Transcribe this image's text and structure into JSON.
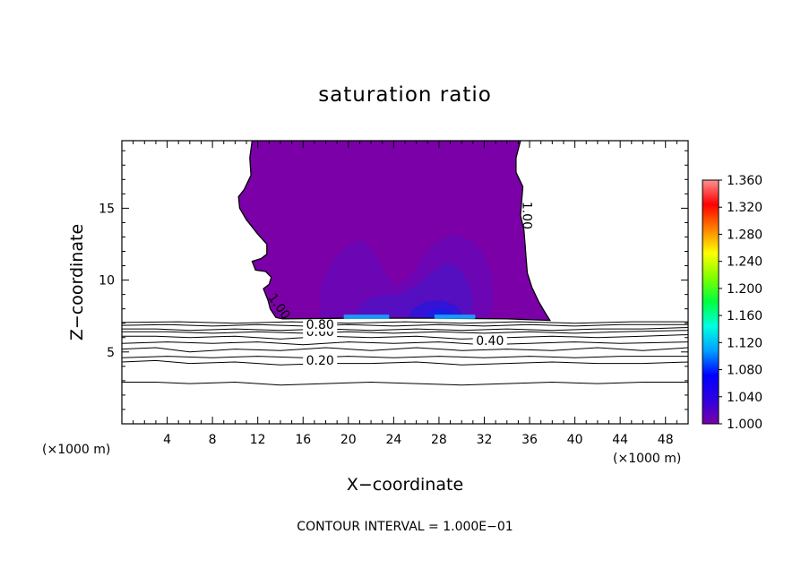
{
  "chart_data": {
    "type": "contour",
    "title": "saturation ratio",
    "xlabel": "X−coordinate",
    "ylabel": "Z−coordinate",
    "x_unit": "(×1000 m)",
    "y_unit": "(×1000 m)",
    "xlim": [
      0,
      50
    ],
    "ylim": [
      0,
      19.7
    ],
    "x_ticks": [
      4,
      8,
      12,
      16,
      20,
      24,
      28,
      32,
      36,
      40,
      44,
      48
    ],
    "x_tick_labels": [
      "4",
      "8",
      "12",
      "16",
      "20",
      "24",
      "28",
      "32",
      "36",
      "40",
      "44",
      "48"
    ],
    "y_ticks": [
      5,
      10,
      15
    ],
    "y_tick_labels": [
      "5",
      "10",
      "15"
    ],
    "footnote": "CONTOUR INTERVAL = 1.000E−01",
    "colorbar": {
      "min": 1.0,
      "max": 1.36,
      "ticks": [
        "1.360",
        "1.320",
        "1.280",
        "1.240",
        "1.200",
        "1.160",
        "1.120",
        "1.080",
        "1.040",
        "1.000"
      ]
    },
    "contour_levels": [
      {
        "label": "0.20",
        "label_at": [
          17.5,
          4.1
        ],
        "points": [
          [
            0,
            4.3
          ],
          [
            3,
            4.4
          ],
          [
            6,
            4.2
          ],
          [
            10,
            4.3
          ],
          [
            14,
            4.1
          ],
          [
            18,
            4.2
          ],
          [
            22,
            4.2
          ],
          [
            26,
            4.3
          ],
          [
            30,
            4.1
          ],
          [
            34,
            4.2
          ],
          [
            38,
            4.3
          ],
          [
            42,
            4.2
          ],
          [
            46,
            4.2
          ],
          [
            50,
            4.3
          ]
        ]
      },
      {
        "label": "0.40",
        "label_at": [
          32.5,
          5.5
        ],
        "points": [
          [
            0,
            5.2
          ],
          [
            3,
            5.3
          ],
          [
            6,
            5.0
          ],
          [
            10,
            5.2
          ],
          [
            14,
            5.1
          ],
          [
            18,
            5.3
          ],
          [
            22,
            5.1
          ],
          [
            26,
            5.3
          ],
          [
            30,
            5.1
          ],
          [
            34,
            5.2
          ],
          [
            38,
            5.1
          ],
          [
            42,
            5.3
          ],
          [
            46,
            5.1
          ],
          [
            50,
            5.3
          ]
        ]
      },
      {
        "label": "0.60",
        "label_at": [
          17.5,
          6.1
        ],
        "points": [
          [
            0,
            6.1
          ],
          [
            3,
            6.1
          ],
          [
            6,
            6.0
          ],
          [
            10,
            6.1
          ],
          [
            14,
            5.9
          ],
          [
            18,
            6.1
          ],
          [
            22,
            6.0
          ],
          [
            26,
            6.1
          ],
          [
            30,
            5.9
          ],
          [
            34,
            6.0
          ],
          [
            38,
            6.1
          ],
          [
            42,
            6.0
          ],
          [
            46,
            6.1
          ],
          [
            50,
            6.2
          ]
        ]
      },
      {
        "label": "0.80",
        "label_at": [
          17.5,
          6.6
        ],
        "points": [
          [
            0,
            6.6
          ],
          [
            3,
            6.6
          ],
          [
            6,
            6.5
          ],
          [
            10,
            6.6
          ],
          [
            14,
            6.5
          ],
          [
            18,
            6.6
          ],
          [
            22,
            6.5
          ],
          [
            26,
            6.6
          ],
          [
            30,
            6.5
          ],
          [
            34,
            6.6
          ],
          [
            38,
            6.5
          ],
          [
            42,
            6.6
          ],
          [
            46,
            6.6
          ],
          [
            50,
            6.7
          ]
        ]
      },
      {
        "label": "",
        "label_at": null,
        "points": [
          [
            0,
            2.9
          ],
          [
            3,
            2.9
          ],
          [
            6,
            2.8
          ],
          [
            10,
            2.9
          ],
          [
            14,
            2.7
          ],
          [
            18,
            2.8
          ],
          [
            22,
            2.9
          ],
          [
            26,
            2.8
          ],
          [
            30,
            2.7
          ],
          [
            34,
            2.8
          ],
          [
            38,
            2.9
          ],
          [
            42,
            2.8
          ],
          [
            46,
            2.9
          ],
          [
            50,
            2.9
          ]
        ]
      },
      {
        "label": "",
        "label_at": null,
        "points": [
          [
            0,
            4.6
          ],
          [
            4,
            4.7
          ],
          [
            8,
            4.6
          ],
          [
            12,
            4.7
          ],
          [
            16,
            4.6
          ],
          [
            20,
            4.7
          ],
          [
            24,
            4.6
          ],
          [
            28,
            4.7
          ],
          [
            32,
            4.6
          ],
          [
            36,
            4.7
          ],
          [
            40,
            4.6
          ],
          [
            44,
            4.7
          ],
          [
            50,
            4.7
          ]
        ]
      },
      {
        "label": "",
        "label_at": null,
        "points": [
          [
            0,
            5.6
          ],
          [
            4,
            5.7
          ],
          [
            8,
            5.6
          ],
          [
            12,
            5.7
          ],
          [
            16,
            5.5
          ],
          [
            20,
            5.7
          ],
          [
            24,
            5.6
          ],
          [
            28,
            5.7
          ],
          [
            32,
            5.5
          ],
          [
            36,
            5.6
          ],
          [
            40,
            5.7
          ],
          [
            44,
            5.6
          ],
          [
            50,
            5.7
          ]
        ]
      },
      {
        "label": "",
        "label_at": null,
        "points": [
          [
            0,
            6.4
          ],
          [
            4,
            6.4
          ],
          [
            8,
            6.3
          ],
          [
            12,
            6.4
          ],
          [
            16,
            6.3
          ],
          [
            20,
            6.4
          ],
          [
            24,
            6.3
          ],
          [
            28,
            6.4
          ],
          [
            32,
            6.3
          ],
          [
            36,
            6.4
          ],
          [
            40,
            6.3
          ],
          [
            44,
            6.4
          ],
          [
            50,
            6.5
          ]
        ]
      },
      {
        "label": "",
        "label_at": null,
        "points": [
          [
            0,
            6.85
          ],
          [
            4,
            6.9
          ],
          [
            8,
            6.8
          ],
          [
            12,
            6.9
          ],
          [
            16,
            6.8
          ],
          [
            20,
            6.9
          ],
          [
            24,
            6.8
          ],
          [
            28,
            6.9
          ],
          [
            32,
            6.8
          ],
          [
            36,
            6.9
          ],
          [
            40,
            6.8
          ],
          [
            44,
            6.9
          ],
          [
            50,
            6.9
          ]
        ]
      },
      {
        "label": "",
        "label_at": null,
        "points": [
          [
            0,
            7.05
          ],
          [
            5,
            7.1
          ],
          [
            10,
            7.0
          ],
          [
            15,
            7.1
          ],
          [
            20,
            7.0
          ],
          [
            25,
            7.1
          ],
          [
            30,
            7.0
          ],
          [
            35,
            7.1
          ],
          [
            40,
            7.0
          ],
          [
            45,
            7.1
          ],
          [
            50,
            7.1
          ]
        ]
      }
    ],
    "supersaturated_region": {
      "boundary_label": "1.00",
      "boundary_label_at": [
        [
          35.4,
          14.5
        ],
        [
          13.6,
          8.0
        ]
      ],
      "fill_color": "#7b00a8",
      "outline": [
        [
          11.5,
          19.7
        ],
        [
          11.3,
          18.5
        ],
        [
          11.4,
          17.3
        ],
        [
          10.8,
          16.3
        ],
        [
          10.3,
          15.8
        ],
        [
          10.4,
          15.0
        ],
        [
          11.0,
          14.2
        ],
        [
          12.0,
          13.2
        ],
        [
          12.8,
          12.5
        ],
        [
          12.8,
          11.8
        ],
        [
          12.3,
          11.5
        ],
        [
          11.5,
          11.3
        ],
        [
          11.8,
          10.7
        ],
        [
          12.7,
          10.6
        ],
        [
          13.2,
          10.2
        ],
        [
          13.0,
          9.7
        ],
        [
          12.5,
          9.4
        ],
        [
          12.9,
          8.6
        ],
        [
          13.1,
          8.0
        ],
        [
          13.6,
          7.4
        ],
        [
          14.2,
          7.3
        ],
        [
          20,
          7.35
        ],
        [
          28,
          7.35
        ],
        [
          34,
          7.3
        ],
        [
          37.8,
          7.2
        ],
        [
          37.4,
          7.7
        ],
        [
          36.8,
          8.5
        ],
        [
          36.2,
          9.5
        ],
        [
          35.8,
          10.5
        ],
        [
          35.7,
          11.5
        ],
        [
          35.6,
          12.5
        ],
        [
          35.5,
          13.5
        ],
        [
          35.2,
          14.5
        ],
        [
          35.3,
          15.5
        ],
        [
          35.4,
          16.5
        ],
        [
          34.8,
          17.5
        ],
        [
          34.8,
          18.5
        ],
        [
          35.2,
          19.7
        ]
      ],
      "inner_regions": [
        {
          "value": 1.01,
          "color": "#6a06b4",
          "outline": [
            [
              17.5,
              7.4
            ],
            [
              17.5,
              9.5
            ],
            [
              18.5,
              11.3
            ],
            [
              19.8,
              12.4
            ],
            [
              21.2,
              12.8
            ],
            [
              22.3,
              12.0
            ],
            [
              23.3,
              10.4
            ],
            [
              24.2,
              9.6
            ],
            [
              25.4,
              10.2
            ],
            [
              26.5,
              11.5
            ],
            [
              27.6,
              12.6
            ],
            [
              29.2,
              13.2
            ],
            [
              30.8,
              12.8
            ],
            [
              32,
              11.8
            ],
            [
              32.6,
              10.5
            ],
            [
              32.8,
              9.2
            ],
            [
              32.7,
              8.0
            ],
            [
              32.3,
              7.4
            ]
          ]
        },
        {
          "value": 1.02,
          "color": "#5410c2",
          "outline": [
            [
              20.5,
              7.4
            ],
            [
              21.2,
              8.4
            ],
            [
              22.5,
              8.9
            ],
            [
              24.3,
              9.0
            ],
            [
              25.8,
              9.5
            ],
            [
              27.4,
              10.6
            ],
            [
              28.8,
              11.2
            ],
            [
              29.8,
              10.8
            ],
            [
              30.6,
              9.8
            ],
            [
              31,
              8.6
            ],
            [
              30.8,
              7.6
            ],
            [
              30.4,
              7.4
            ]
          ]
        },
        {
          "value": 1.04,
          "color": "#3014d6",
          "outline": [
            [
              25.2,
              7.4
            ],
            [
              25.8,
              8.1
            ],
            [
              26.8,
              8.5
            ],
            [
              28.3,
              8.6
            ],
            [
              29.6,
              8.2
            ],
            [
              30.1,
              7.6
            ],
            [
              29.8,
              7.4
            ]
          ]
        },
        {
          "value": 1.06,
          "color": "#1c1ce8",
          "outline": [
            [
              26.6,
              7.4
            ],
            [
              27.2,
              7.9
            ],
            [
              28.2,
              8.1
            ],
            [
              29.1,
              7.8
            ],
            [
              29.2,
              7.4
            ]
          ]
        },
        {
          "value": 1.1,
          "color": "#14a8ff",
          "outline": [
            [
              19.6,
              7.3
            ],
            [
              23.6,
              7.3
            ],
            [
              23.6,
              7.6
            ],
            [
              19.6,
              7.6
            ]
          ]
        },
        {
          "value": 1.1,
          "color": "#14a8ff",
          "outline": [
            [
              27.6,
              7.3
            ],
            [
              31.2,
              7.3
            ],
            [
              31.2,
              7.6
            ],
            [
              27.6,
              7.6
            ]
          ]
        }
      ]
    }
  }
}
